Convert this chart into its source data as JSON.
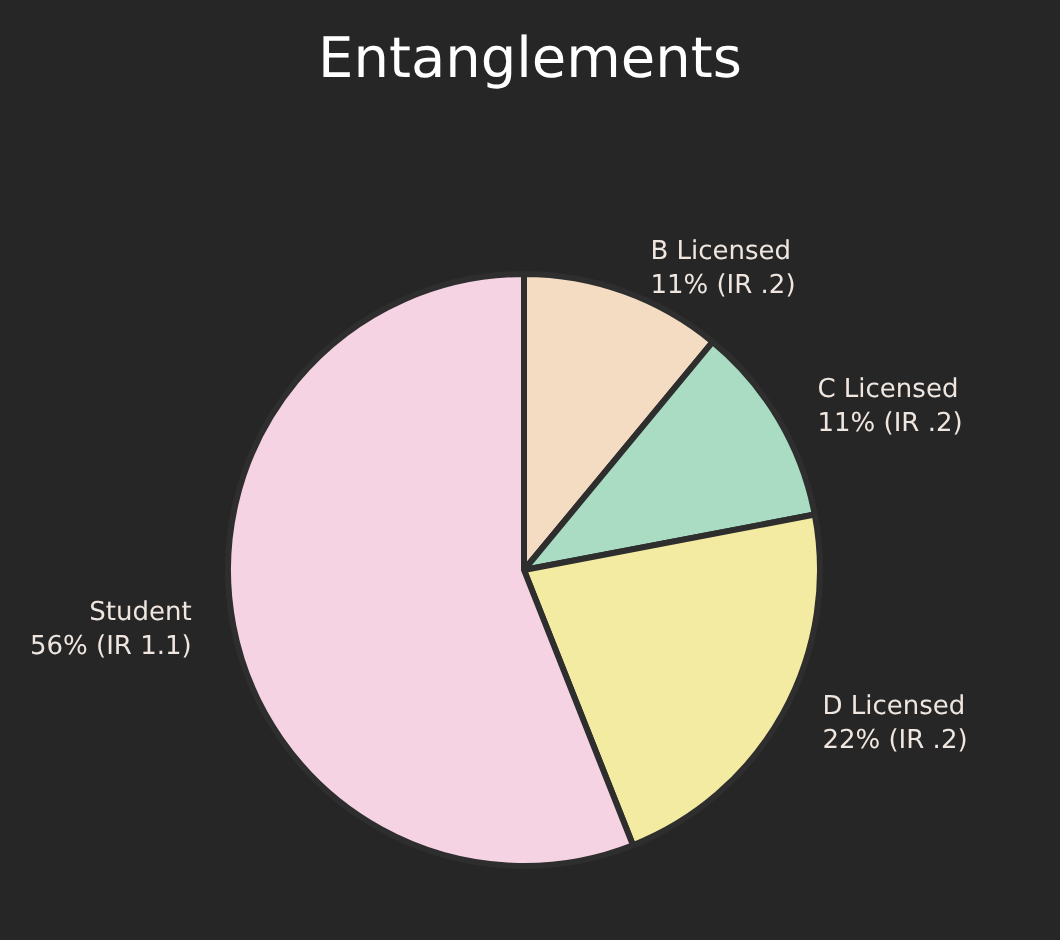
{
  "chart_data": {
    "type": "pie",
    "title": "Entanglements",
    "categories": [
      "B Licensed",
      "C Licensed",
      "D Licensed",
      "Student"
    ],
    "values": [
      11,
      11,
      22,
      56
    ],
    "value_labels": [
      "11% (IR .2)",
      "11% (IR .2)",
      "22% (IR .2)",
      "56% (IR 1.1)"
    ],
    "colors": [
      "#f3dcc2",
      "#a9dcc3",
      "#f4eba3",
      "#f6d3e2"
    ],
    "legend": false
  }
}
